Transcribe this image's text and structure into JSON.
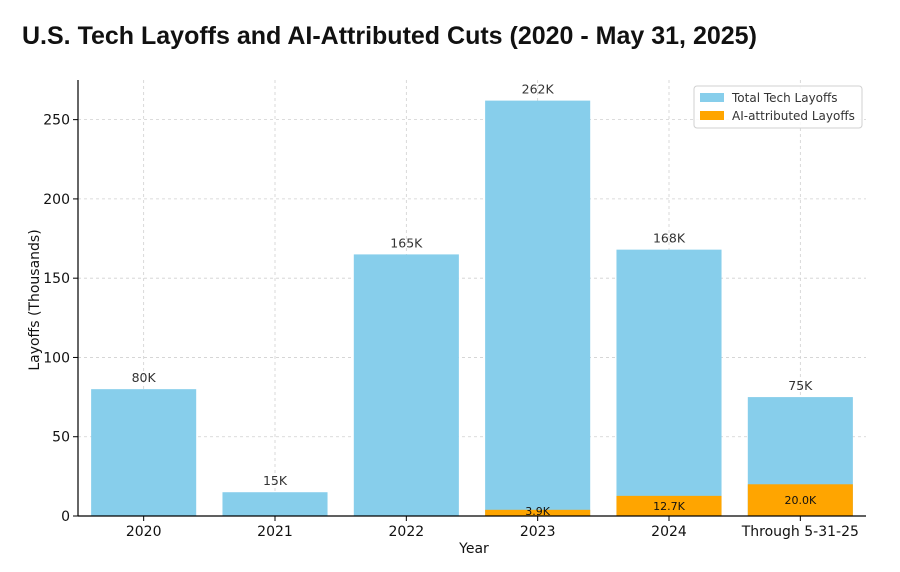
{
  "chart_data": {
    "type": "bar",
    "title": "U.S. Tech Layoffs and AI-Attributed Cuts (2020 - May 31, 2025)",
    "xlabel": "Year",
    "ylabel": "Layoffs (Thousands)",
    "categories": [
      "2020",
      "2021",
      "2022",
      "2023",
      "2024",
      "Through 5-31-25"
    ],
    "ylim": [
      0,
      275
    ],
    "yticks": [
      0,
      50,
      100,
      150,
      200,
      250
    ],
    "grid": true,
    "legend_position": "top-right",
    "series": [
      {
        "name": "Total Tech Layoffs",
        "color": "#87CEEB",
        "values": [
          80,
          15,
          165,
          262,
          168,
          75
        ],
        "labels": [
          "80K",
          "15K",
          "165K",
          "262K",
          "168K",
          "75K"
        ]
      },
      {
        "name": "AI-attributed Layoffs",
        "color": "#FFA500",
        "values": [
          0,
          0,
          0,
          3.9,
          12.7,
          20.0
        ],
        "labels": [
          "",
          "",
          "",
          "3.9K",
          "12.7K",
          "20.0K"
        ]
      }
    ]
  }
}
